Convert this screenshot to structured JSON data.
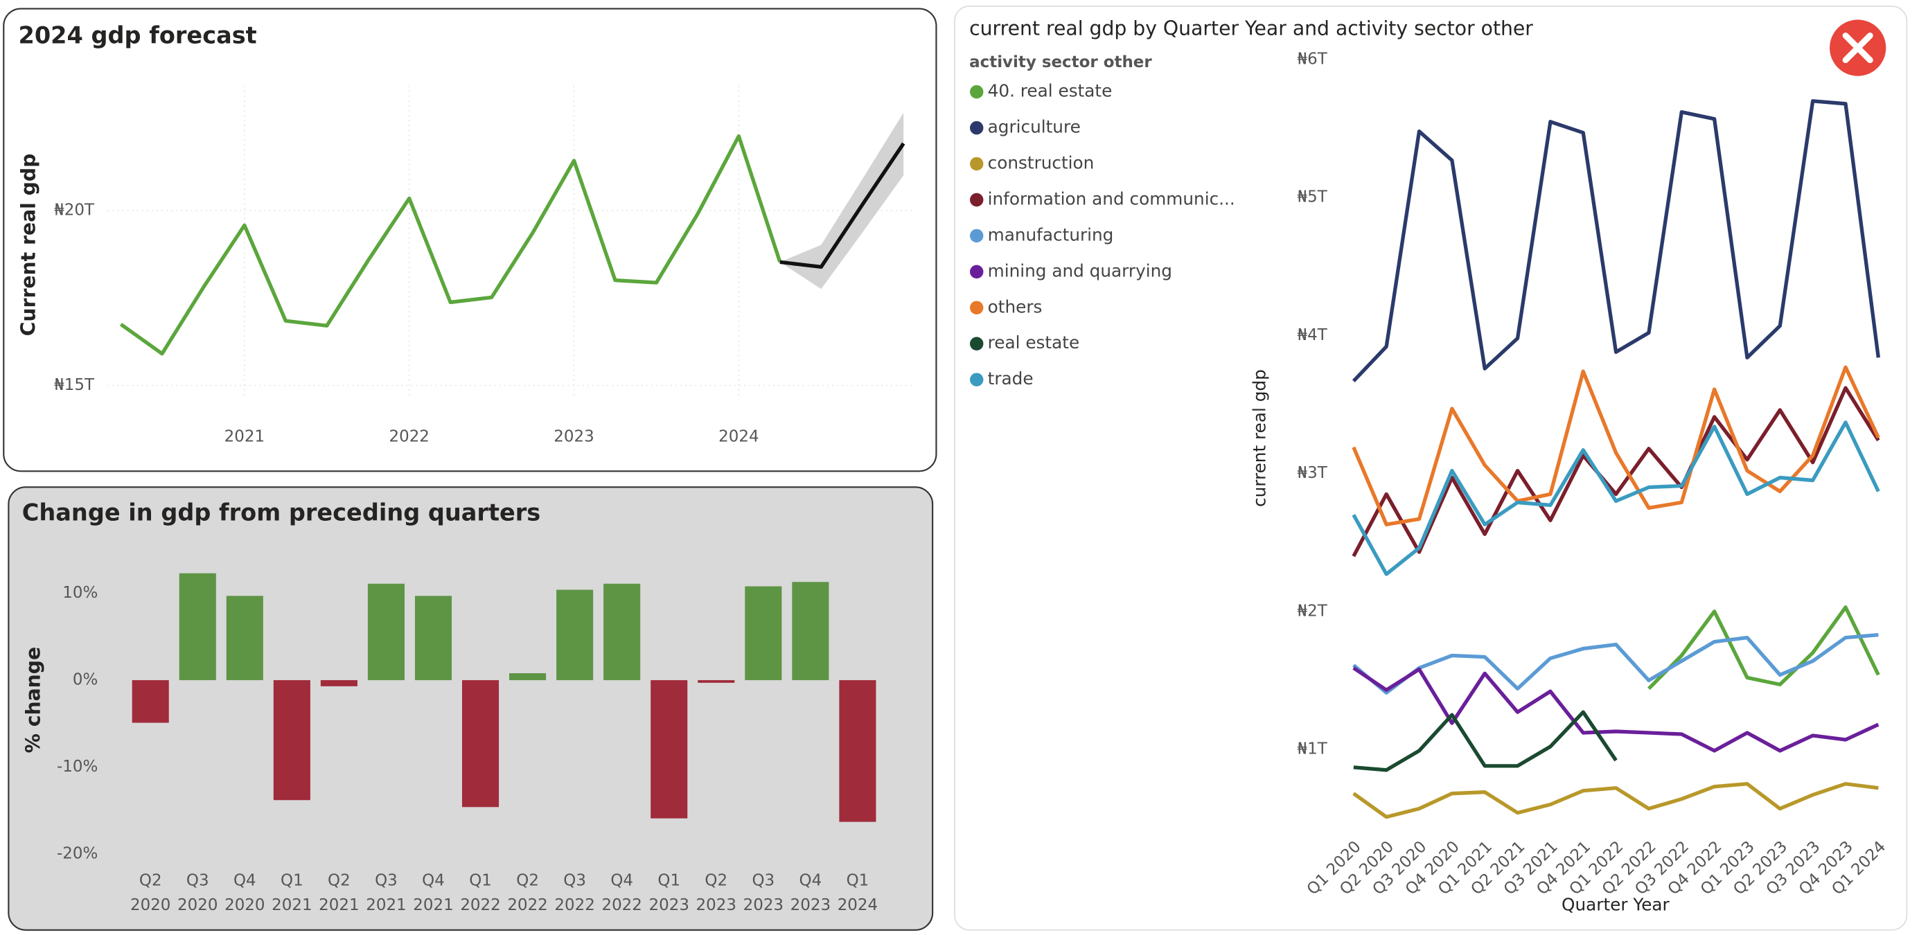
{
  "chart_data": [
    {
      "type": "line",
      "title": "2024 gdp forecast",
      "y_label": "Current real gdp",
      "x": [
        2020.25,
        2020.5,
        2020.75,
        2021,
        2021.25,
        2021.5,
        2021.75,
        2022,
        2022.25,
        2022.5,
        2022.75,
        2023,
        2023.25,
        2023.5,
        2023.75,
        2024,
        2024.25
      ],
      "values": [
        16.75,
        15.91,
        17.8,
        19.58,
        16.85,
        16.71,
        18.57,
        20.35,
        17.38,
        17.52,
        19.37,
        21.43,
        18.01,
        17.94,
        19.9,
        22.13,
        18.53
      ],
      "color": "#5ba63c",
      "forecast": {
        "x": [
          2024.25,
          2024.5,
          2024.75,
          2025
        ],
        "values": [
          18.53,
          18.39,
          20.17,
          21.92
        ],
        "lower": [
          18.53,
          17.76,
          19.37,
          21.01
        ],
        "upper": [
          18.53,
          19.02,
          20.9,
          22.8
        ],
        "color": "#111111",
        "band_color": "#d3d3d3"
      },
      "xlim": [
        2020.17,
        2025.05
      ],
      "ylim": [
        14.65,
        23.57
      ],
      "xticks": [
        2021,
        2022,
        2023,
        2024
      ],
      "yticks": [
        {
          "value": 15,
          "label": "₦15T"
        },
        {
          "value": 20,
          "label": "₦20T"
        }
      ],
      "grid": true
    },
    {
      "type": "bar",
      "title": "Change in gdp from preceding quarters",
      "y_label": "% change",
      "categories": [
        [
          "Q2",
          "2020"
        ],
        [
          "Q3",
          "2020"
        ],
        [
          "Q4",
          "2020"
        ],
        [
          "Q1",
          "2021"
        ],
        [
          "Q2",
          "2021"
        ],
        [
          "Q3",
          "2021"
        ],
        [
          "Q4",
          "2021"
        ],
        [
          "Q1",
          "2022"
        ],
        [
          "Q2",
          "2022"
        ],
        [
          "Q3",
          "2022"
        ],
        [
          "Q4",
          "2022"
        ],
        [
          "Q1",
          "2023"
        ],
        [
          "Q2",
          "2023"
        ],
        [
          "Q3",
          "2023"
        ],
        [
          "Q4",
          "2023"
        ],
        [
          "Q1",
          "2024"
        ]
      ],
      "values": [
        -4.9,
        12.3,
        9.7,
        -13.8,
        -0.7,
        11.1,
        9.7,
        -14.6,
        0.8,
        10.4,
        11.1,
        -15.9,
        -0.3,
        10.8,
        11.3,
        -16.3
      ],
      "positive_color": "#5e9545",
      "negative_color": "#a02b3b",
      "ylim": [
        -21,
        15.6
      ],
      "yticks": [
        {
          "value": -20,
          "label": "-20%"
        },
        {
          "value": -10,
          "label": "-10%"
        },
        {
          "value": 0,
          "label": "0%"
        },
        {
          "value": 10,
          "label": "10%"
        }
      ],
      "grid": false
    },
    {
      "type": "line",
      "title": "current real gdp by Quarter Year and activity sector other",
      "y_label": "current real gdp",
      "x_label": "Quarter Year",
      "legend_title": "activity sector other",
      "categories": [
        "Q1 2020",
        "Q2 2020",
        "Q3 2020",
        "Q4 2020",
        "Q1 2021",
        "Q2 2021",
        "Q3 2021",
        "Q4 2021",
        "Q1 2022",
        "Q2 2022",
        "Q3 2022",
        "Q4 2022",
        "Q1 2023",
        "Q2 2023",
        "Q3 2023",
        "Q4 2023",
        "Q1 2024"
      ],
      "series": [
        {
          "name": "40. real estate",
          "color": "#5ba63c",
          "values": [
            null,
            null,
            null,
            null,
            null,
            null,
            null,
            null,
            null,
            1.44,
            1.68,
            2.0,
            1.52,
            1.47,
            1.7,
            2.03,
            1.54
          ]
        },
        {
          "name": "agriculture",
          "color": "#2b3a6b",
          "values": [
            3.67,
            3.92,
            5.48,
            5.27,
            3.76,
            3.98,
            5.55,
            5.47,
            3.88,
            4.02,
            5.62,
            5.57,
            3.84,
            4.07,
            5.7,
            5.68,
            3.84
          ]
        },
        {
          "name": "construction",
          "color": "#b8982a",
          "values": [
            0.68,
            0.51,
            0.57,
            0.68,
            0.69,
            0.54,
            0.6,
            0.7,
            0.72,
            0.57,
            0.64,
            0.73,
            0.75,
            0.57,
            0.67,
            0.75,
            0.72
          ]
        },
        {
          "name": "information and communic...",
          "color": "#7a1f2b",
          "values": [
            2.4,
            2.85,
            2.43,
            2.97,
            2.56,
            3.02,
            2.66,
            3.13,
            2.85,
            3.18,
            2.9,
            3.41,
            3.1,
            3.46,
            3.08,
            3.62,
            3.24
          ]
        },
        {
          "name": "manufacturing",
          "color": "#5b9bd5",
          "values": [
            1.61,
            1.41,
            1.59,
            1.68,
            1.67,
            1.44,
            1.66,
            1.73,
            1.76,
            1.5,
            1.64,
            1.78,
            1.81,
            1.54,
            1.64,
            1.81,
            1.83
          ]
        },
        {
          "name": "mining and quarrying",
          "color": "#6a1f9a",
          "values": [
            1.59,
            1.43,
            1.58,
            1.19,
            1.55,
            1.27,
            1.42,
            1.12,
            1.13,
            1.12,
            1.11,
            0.99,
            1.12,
            0.99,
            1.1,
            1.07,
            1.18
          ]
        },
        {
          "name": "others",
          "color": "#e8782a",
          "values": [
            3.19,
            2.63,
            2.67,
            3.47,
            3.06,
            2.8,
            2.85,
            3.74,
            3.15,
            2.75,
            2.79,
            3.61,
            3.02,
            2.87,
            3.13,
            3.77,
            3.26
          ]
        },
        {
          "name": "real estate",
          "color": "#1a4a30",
          "values": [
            0.87,
            0.85,
            0.99,
            1.25,
            0.88,
            0.88,
            1.02,
            1.27,
            0.92,
            null,
            null,
            null,
            null,
            null,
            null,
            null,
            null
          ]
        },
        {
          "name": "trade",
          "color": "#3a9bc0",
          "values": [
            2.7,
            2.27,
            2.46,
            3.02,
            2.63,
            2.79,
            2.77,
            3.17,
            2.8,
            2.9,
            2.91,
            3.34,
            2.85,
            2.97,
            2.95,
            3.37,
            2.87
          ]
        }
      ],
      "ylim": [
        0.4,
        6.05
      ],
      "yticks": [
        {
          "value": 1,
          "label": "₦1T"
        },
        {
          "value": 2,
          "label": "₦2T"
        },
        {
          "value": 3,
          "label": "₦3T"
        },
        {
          "value": 4,
          "label": "₦4T"
        },
        {
          "value": 5,
          "label": "₦5T"
        },
        {
          "value": 6,
          "label": "₦6T"
        }
      ],
      "grid": false
    }
  ]
}
